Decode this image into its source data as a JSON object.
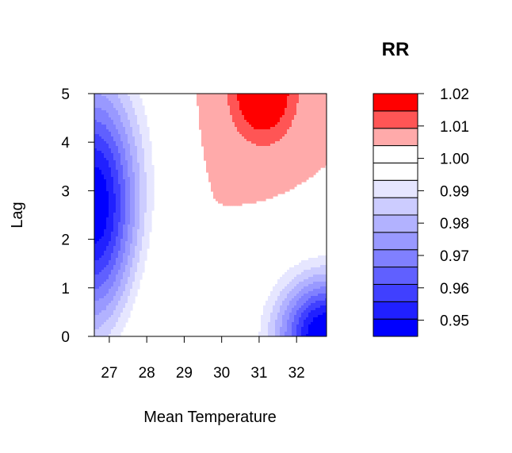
{
  "chart_data": {
    "type": "heatmap",
    "subtype": "filled-contour",
    "title": "RR",
    "xlabel": "Mean Temperature",
    "ylabel": "Lag",
    "xlim": [
      26.6,
      32.8
    ],
    "ylim": [
      0,
      5
    ],
    "x_ticks": [
      "27",
      "28",
      "29",
      "30",
      "31",
      "32"
    ],
    "y_ticks": [
      "0",
      "1",
      "2",
      "3",
      "4",
      "5"
    ],
    "colorbar": {
      "levels": [
        0.945,
        0.95,
        0.955,
        0.96,
        0.965,
        0.97,
        0.975,
        0.98,
        0.985,
        0.99,
        0.995,
        1.0,
        1.005,
        1.01,
        1.015,
        1.02
      ],
      "colors": [
        "#0000FF",
        "#2020FF",
        "#4040FF",
        "#6060FF",
        "#8080FF",
        "#9999FF",
        "#B2B2FF",
        "#CCCCFF",
        "#E6E6FF",
        "#FFFFFF",
        "#FFFFFF",
        "#FFAAAA",
        "#FF5555",
        "#FF0000"
      ],
      "labels": [
        "0.95",
        "0.96",
        "0.97",
        "0.98",
        "0.99",
        "1.00",
        "1.01",
        "1.02"
      ]
    },
    "surface_model": {
      "cold_effect": {
        "peak_temp": 26.6,
        "peak_lag": 2.7,
        "min_rr": 0.947
      },
      "hot_immediate_effect": {
        "peak_temp": 32.8,
        "peak_lag": 0.0,
        "min_rr": 0.945
      },
      "hot_delayed_effect": {
        "peak_temp": 31.1,
        "peak_lag": 5.0,
        "max_rr": 1.02
      }
    }
  }
}
